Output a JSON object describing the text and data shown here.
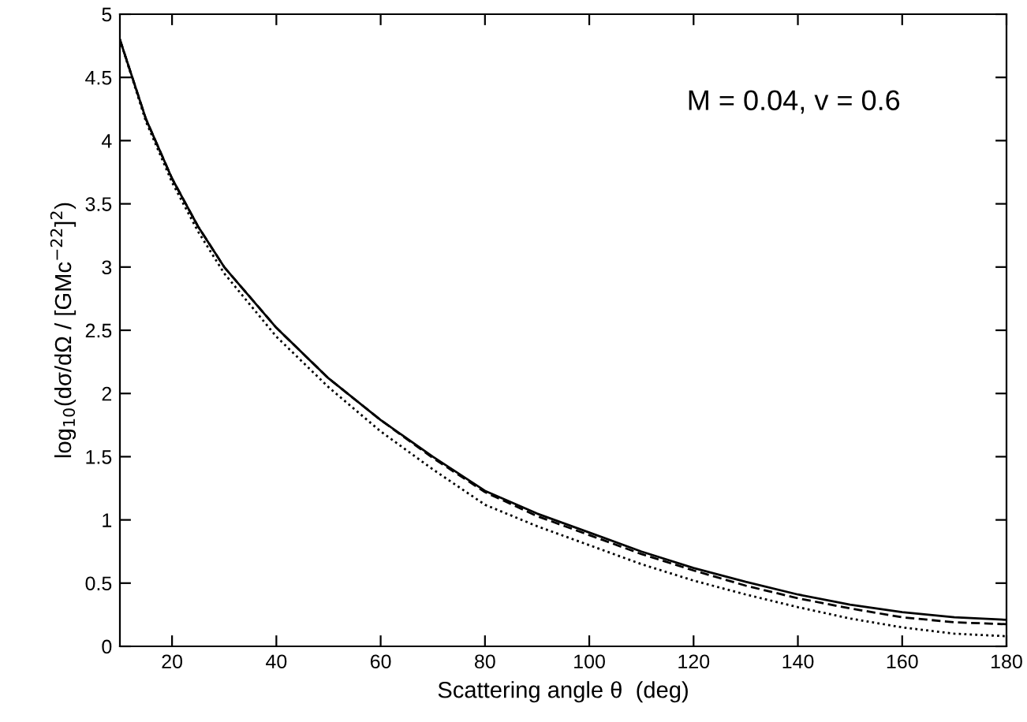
{
  "chart_data": {
    "type": "line",
    "xlabel": "Scattering angle θ  (deg)",
    "ylabel": "log$_{10}$(dσ/dΩ / [GMc$^{−22}$]$^{2}$)",
    "annotations": [
      "M = 0.04, v = 0.6"
    ],
    "xlim": [
      10,
      180
    ],
    "xticks": [
      20,
      40,
      60,
      80,
      100,
      120,
      140,
      160,
      180
    ],
    "ylim": [
      0,
      5
    ],
    "yticks": [
      0,
      0.5,
      1,
      1.5,
      2,
      2.5,
      3,
      3.5,
      4,
      4.5,
      5
    ],
    "grid": false,
    "legend": false,
    "marker": "none",
    "x": [
      10,
      15,
      20,
      25,
      30,
      40,
      50,
      60,
      70,
      80,
      90,
      100,
      110,
      120,
      130,
      140,
      150,
      160,
      170,
      180
    ],
    "series": [
      {
        "color": "#000000",
        "line_style": "solid",
        "values": [
          4.8,
          4.17,
          3.7,
          3.32,
          3.0,
          2.52,
          2.12,
          1.79,
          1.5,
          1.23,
          1.05,
          0.9,
          0.75,
          0.62,
          0.51,
          0.41,
          0.33,
          0.27,
          0.23,
          0.21
        ]
      },
      {
        "color": "#000000",
        "line_style": "dashed",
        "values": [
          4.8,
          4.17,
          3.7,
          3.32,
          3.0,
          2.52,
          2.12,
          1.79,
          1.49,
          1.22,
          1.03,
          0.88,
          0.73,
          0.6,
          0.48,
          0.38,
          0.3,
          0.23,
          0.19,
          0.175
        ]
      },
      {
        "color": "#000000",
        "line_style": "dotted",
        "values": [
          4.8,
          4.15,
          3.67,
          3.28,
          2.95,
          2.45,
          2.05,
          1.7,
          1.4,
          1.12,
          0.95,
          0.8,
          0.65,
          0.52,
          0.41,
          0.31,
          0.22,
          0.15,
          0.1,
          0.08
        ]
      }
    ]
  }
}
